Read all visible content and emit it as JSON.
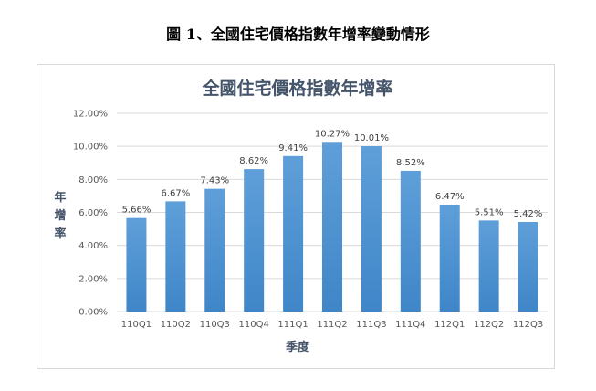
{
  "caption": "圖 1、全國住宅價格指數年增率變動情形",
  "chart_data": {
    "type": "bar",
    "title": "全國住宅價格指數年增率",
    "xlabel": "季度",
    "ylabel": "年增率",
    "categories": [
      "110Q1",
      "110Q2",
      "110Q3",
      "110Q4",
      "111Q1",
      "111Q2",
      "111Q3",
      "111Q4",
      "112Q1",
      "112Q2",
      "112Q3"
    ],
    "values": [
      5.66,
      6.67,
      7.43,
      8.62,
      9.41,
      10.27,
      10.01,
      8.52,
      6.47,
      5.51,
      5.42
    ],
    "data_labels": [
      "5.66%",
      "6.67%",
      "7.43%",
      "8.62%",
      "9.41%",
      "10.27%",
      "10.01%",
      "8.52%",
      "6.47%",
      "5.51%",
      "5.42%"
    ],
    "ylim": [
      0,
      12
    ],
    "yticks": [
      "0.00%",
      "2.00%",
      "4.00%",
      "6.00%",
      "8.00%",
      "10.00%",
      "12.00%"
    ],
    "grid": true,
    "bar_color": "#5b9bd5"
  }
}
